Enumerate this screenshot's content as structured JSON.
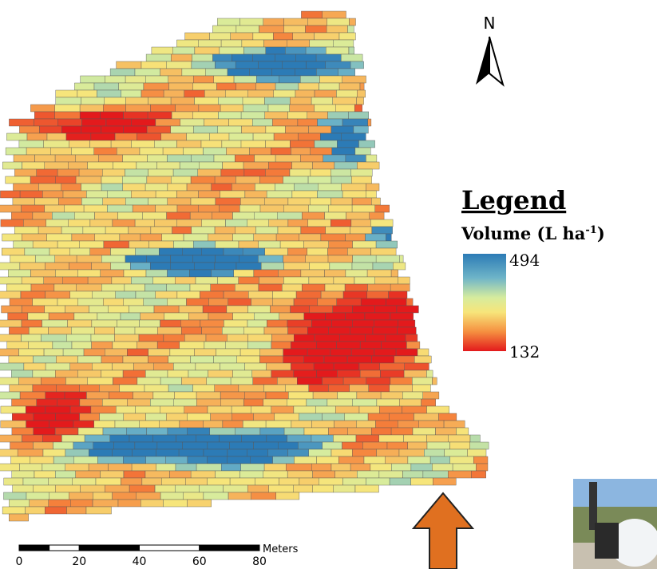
{
  "north": "N",
  "legend": {
    "heading": "Legend",
    "title": "Volume (L ha",
    "title_sup": "-1",
    "title_end": ")",
    "max": 494,
    "min": 132
  },
  "scale_bar": {
    "ticks": [
      0,
      20,
      40,
      60,
      80
    ],
    "unit": "Meters"
  }
}
